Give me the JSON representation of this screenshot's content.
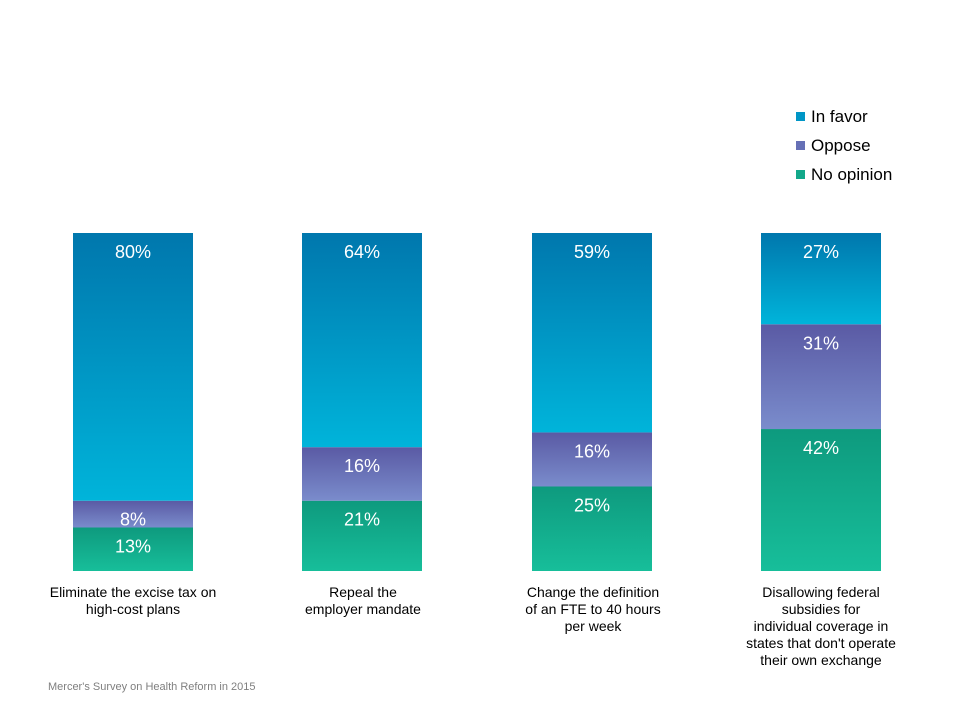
{
  "chart_data": {
    "type": "bar",
    "stacked": true,
    "percent_stacked": true,
    "categories": [
      "Eliminate the excise tax on\nhigh-cost plans",
      "Repeal the\nemployer mandate",
      "Change the definition\nof an FTE to 40 hours\nper week",
      "Disallowing federal\nsubsidies for\nindividual coverage in\nstates that don't operate\ntheir own exchange"
    ],
    "series": [
      {
        "name": "No opinion",
        "values": [
          13,
          21,
          25,
          42
        ],
        "labels": [
          "13%",
          "21%",
          "25%",
          "42%"
        ],
        "color": "#12a88a",
        "color_light": "#16bc98"
      },
      {
        "name": "Oppose",
        "values": [
          8,
          16,
          16,
          31
        ],
        "labels": [
          "8%",
          "16%",
          "16%",
          "31%"
        ],
        "color": "#5a5fa8",
        "color_light": "#7280c4"
      },
      {
        "name": "In favor",
        "values": [
          80,
          64,
          59,
          27
        ],
        "labels": [
          "80%",
          "64%",
          "59%",
          "27%"
        ],
        "color": "#0077ad",
        "color_light": "#00b0d8"
      }
    ],
    "legend": [
      "In favor",
      "Oppose",
      "No opinion"
    ],
    "legend_placement": "top-right",
    "grid": false
  },
  "source": "Mercer's Survey on Health Reform in 2015"
}
